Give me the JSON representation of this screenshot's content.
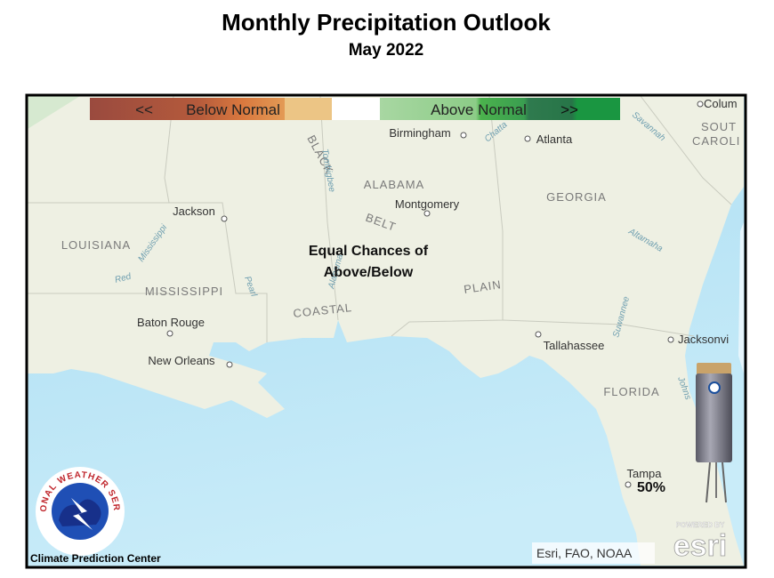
{
  "header": {
    "title": "Monthly Precipitation Outlook",
    "subtitle": "May 2022"
  },
  "legend": {
    "below_arrow": "<<",
    "below": "Below Normal",
    "above": "Above Normal",
    "above_arrow": ">>"
  },
  "map": {
    "annotation": [
      "Equal Chances of",
      "Above/Below"
    ],
    "probability": "50%",
    "places": [
      "Birmingham",
      "Atlanta",
      "Montgomery",
      "Jackson",
      "Baton Rouge",
      "New Orleans",
      "Tallahassee",
      "Jacksonvi",
      "Tampa",
      "Colum"
    ],
    "regions": [
      "ALABAMA",
      "GEORGIA",
      "LOUISIANA",
      "MISSISSIPPI",
      "FLORIDA",
      "SOUT",
      "CAROLI",
      "BLACK",
      "BELT",
      "COASTAL",
      "PLAIN"
    ],
    "rivers": [
      "Tombigbee",
      "Chatta",
      "Savannah",
      "Altamaha",
      "Red",
      "Mississippi",
      "Pearl",
      "Alabama",
      "Suwannee",
      "Johns"
    ]
  },
  "logo": {
    "ring": "NATIONAL WEATHER SERVICE",
    "caption": "Climate Prediction Center"
  },
  "attribution": "Esri, FAO, NOAA",
  "esri": {
    "powered": "POWERED BY",
    "name": "esri"
  }
}
